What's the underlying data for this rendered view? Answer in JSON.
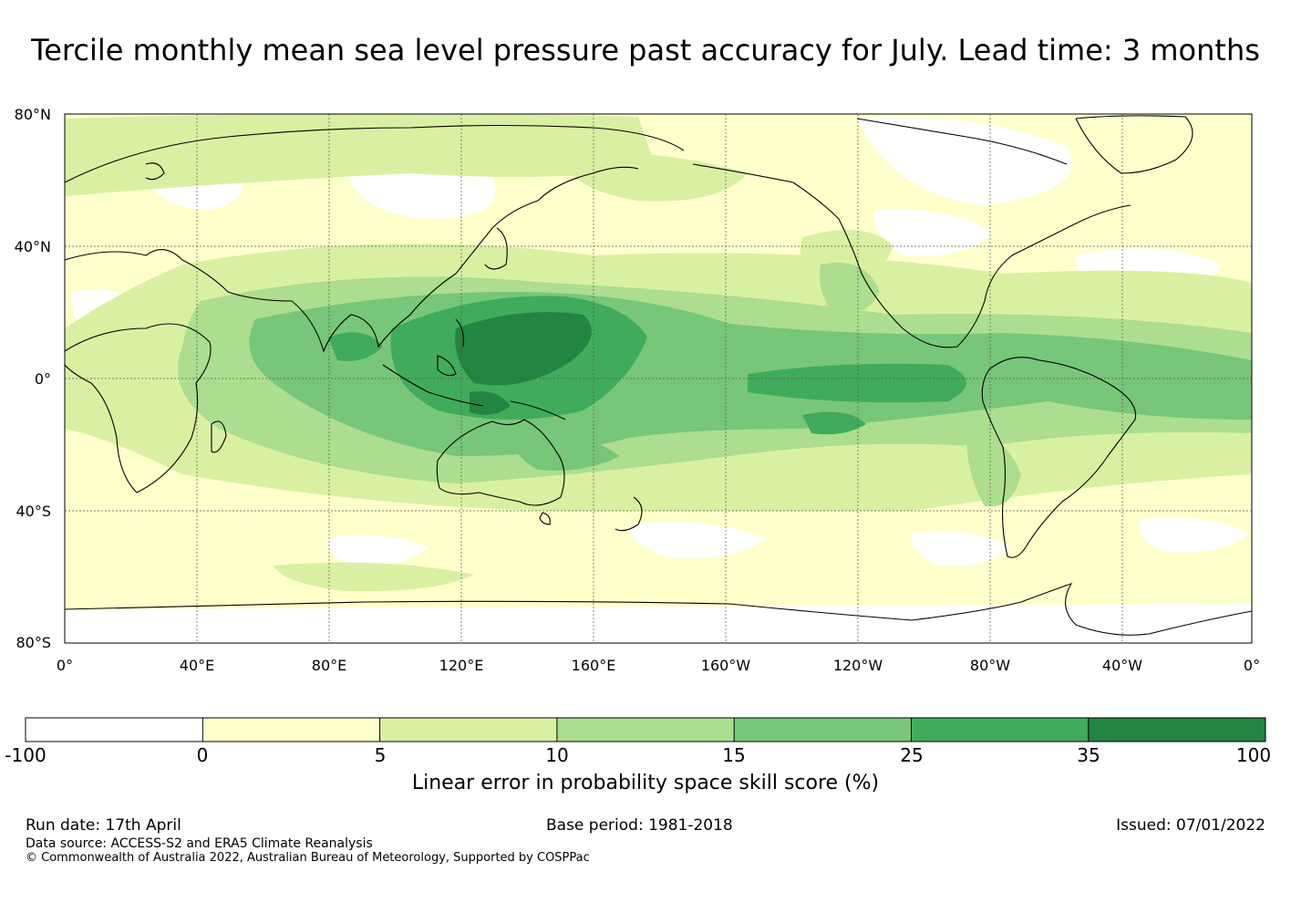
{
  "title": "Tercile monthly mean sea level pressure past accuracy for July. Lead time: 3 months",
  "lat_labels": [
    "80°N",
    "40°N",
    "0°",
    "40°S",
    "80°S"
  ],
  "lon_labels": [
    "0°",
    "40°E",
    "80°E",
    "120°E",
    "160°E",
    "160°W",
    "120°W",
    "80°W",
    "40°W",
    "0°"
  ],
  "colorbar": {
    "title": "Linear error in probability space skill score (%)",
    "ticks": [
      "-100",
      "0",
      "5",
      "10",
      "15",
      "25",
      "35",
      "100"
    ],
    "colors": [
      "#ffffff",
      "#ffffcc",
      "#d9f0a3",
      "#addd8e",
      "#78c679",
      "#41ab5d",
      "#238443"
    ]
  },
  "footer": {
    "run_date": "Run date: 17th April",
    "base_period": "Base period: 1981-2018",
    "issued": "Issued: 07/01/2022",
    "data_source": "Data source: ACCESS-S2 and ERA5 Climate Reanalysis",
    "copyright": "© Commonwealth of Australia 2022, Australian Bureau of Meteorology, Supported by COSPPac"
  }
}
